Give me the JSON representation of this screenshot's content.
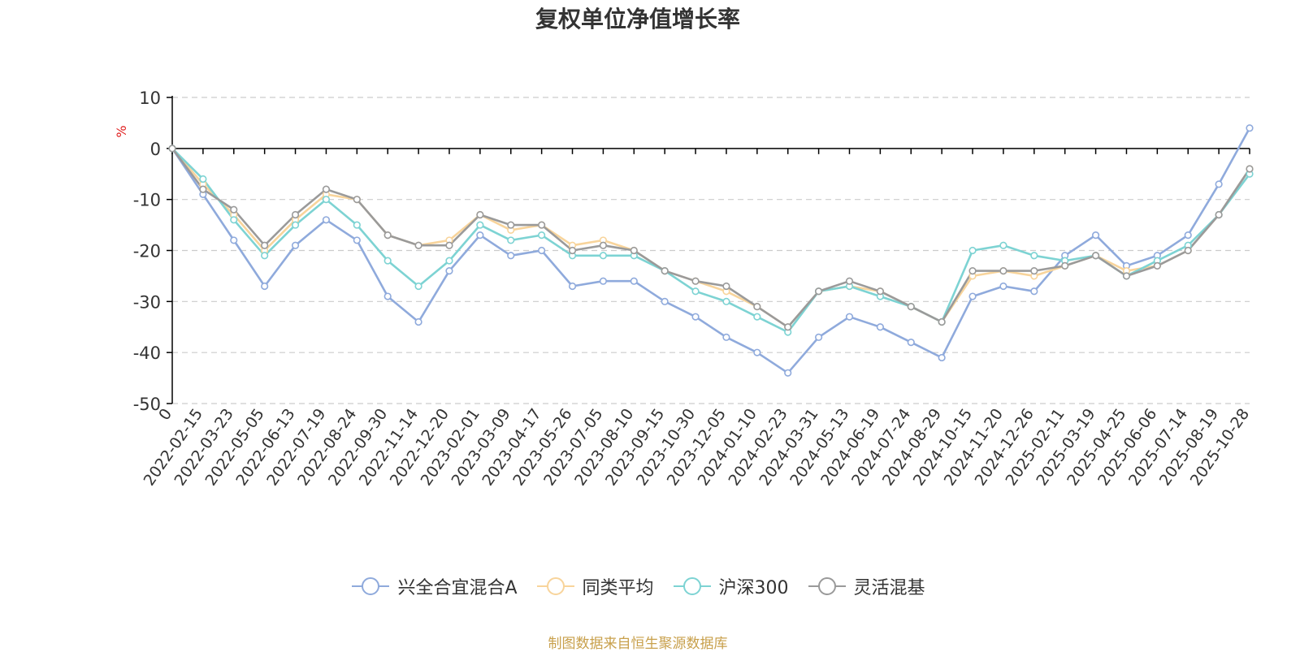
{
  "colors": {
    "fund": "#8faadc",
    "peer": "#f8d49b",
    "hs300": "#7dd3d3",
    "flex": "#9a9a9a",
    "grid": "#cccccc",
    "axis": "#000000",
    "unit": "#e02020",
    "source": "#c8a04c"
  },
  "source_note": "制图数据来自恒生聚源数据库",
  "chart_data": {
    "type": "line",
    "title": "复权单位净值增长率",
    "ylabel": "%",
    "ylim": [
      -50,
      10
    ],
    "yticks": [
      10,
      0,
      -10,
      -20,
      -30,
      -40,
      -50
    ],
    "grid": true,
    "legend_position": "bottom-center",
    "x_tick_labels": [
      "0",
      "2022-02-15",
      "2022-03-23",
      "2022-05-05",
      "2022-06-13",
      "2022-07-19",
      "2022-08-24",
      "2022-09-30",
      "2022-11-14",
      "2022-12-20",
      "2023-02-01",
      "2023-03-09",
      "2023-04-17",
      "2023-05-26",
      "2023-07-05",
      "2023-08-10",
      "2023-09-15",
      "2023-10-30",
      "2023-12-05",
      "2024-01-10",
      "2024-02-23",
      "2024-03-31",
      "2024-05-13",
      "2024-06-19",
      "2024-07-24",
      "2024-08-29",
      "2024-10-15",
      "2024-11-20",
      "2024-12-26",
      "2025-02-11",
      "2025-03-19",
      "2025-04-25",
      "2025-06-06",
      "2025-07-14",
      "2025-08-19",
      "2025-10-28"
    ],
    "x": [
      "0",
      "2022-02-15",
      "2022-03-23",
      "2022-05-05",
      "2022-06-13",
      "2022-07-19",
      "2022-08-24",
      "2022-09-30",
      "2022-11-14",
      "2022-12-20",
      "2023-02-01",
      "2023-03-09",
      "2023-04-17",
      "2023-05-26",
      "2023-07-05",
      "2023-08-10",
      "2023-09-15",
      "2023-10-30",
      "2023-12-05",
      "2024-01-10",
      "2024-02-23",
      "2024-03-31",
      "2024-05-13",
      "2024-06-19",
      "2024-07-24",
      "2024-08-29",
      "2024-10-15",
      "2024-11-20",
      "2024-12-26",
      "2025-02-11",
      "2025-03-19",
      "2025-04-25",
      "2025-06-06",
      "2025-07-14",
      "2025-08-19",
      "2025-10-28"
    ],
    "series": [
      {
        "name": "兴全合宜混合A",
        "values": [
          0,
          -9,
          -18,
          -27,
          -19,
          -14,
          -18,
          -29,
          -34,
          -24,
          -17,
          -21,
          -20,
          -27,
          -26,
          -26,
          -30,
          -33,
          -37,
          -40,
          -44,
          -37,
          -33,
          -35,
          -38,
          -41,
          -29,
          -27,
          -28,
          -21,
          -17,
          -23,
          -21,
          -17,
          -7,
          4
        ]
      },
      {
        "name": "同类平均",
        "values": [
          0,
          -7,
          -13,
          -20,
          -14,
          -9,
          -10,
          -17,
          -19,
          -18,
          -13,
          -16,
          -15,
          -19,
          -18,
          -20,
          -24,
          -26,
          -28,
          -31,
          -35,
          -28,
          -27,
          -28,
          -31,
          -34,
          -25,
          -24,
          -25,
          -23,
          -21,
          -24,
          -23,
          -20,
          -13,
          -4
        ]
      },
      {
        "name": "沪深300",
        "values": [
          0,
          -6,
          -14,
          -21,
          -15,
          -10,
          -15,
          -22,
          -27,
          -22,
          -15,
          -18,
          -17,
          -21,
          -21,
          -21,
          -24,
          -28,
          -30,
          -33,
          -36,
          -28,
          -27,
          -29,
          -31,
          -34,
          -20,
          -19,
          -21,
          -22,
          -21,
          -25,
          -22,
          -19,
          -13,
          -5
        ]
      },
      {
        "name": "灵活混基",
        "values": [
          0,
          -8,
          -12,
          -19,
          -13,
          -8,
          -10,
          -17,
          -19,
          -19,
          -13,
          -15,
          -15,
          -20,
          -19,
          -20,
          -24,
          -26,
          -27,
          -31,
          -35,
          -28,
          -26,
          -28,
          -31,
          -34,
          -24,
          -24,
          -24,
          -23,
          -21,
          -25,
          -23,
          -20,
          -13,
          -4
        ]
      }
    ]
  }
}
